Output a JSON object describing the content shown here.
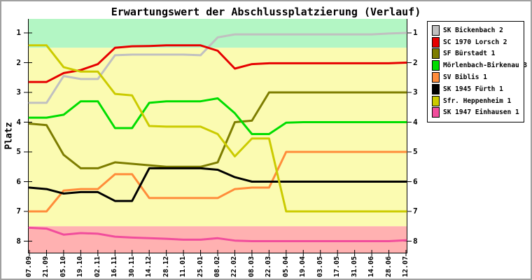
{
  "frame": {
    "border_color": "#a0a0a0",
    "background": "#ffffff"
  },
  "chart_data": {
    "type": "line",
    "title": "Erwartungswert der Abschlussplatzierung (Verlauf)",
    "ylabel": "Platz",
    "xlabel": "",
    "y_axis_inverted": true,
    "ylim": [
      0.53,
      8.41
    ],
    "y_ticks": [
      "1",
      "2",
      "3",
      "4",
      "5",
      "6",
      "7",
      "8"
    ],
    "grid": false,
    "legend_position": "outside-right",
    "x_labels": [
      "07.09",
      "21.09",
      "05.10",
      "19.10",
      "02.11",
      "16.11",
      "30.11",
      "14.12",
      "28.12",
      "11.01",
      "25.01",
      "08.02",
      "22.02",
      "08.03",
      "22.03",
      "05.04",
      "19.04",
      "03.05",
      "17.05",
      "31.05",
      "14.06",
      "28.06",
      "12.07"
    ],
    "bands": [
      {
        "label": "promotion-zone",
        "from": null,
        "to": 1.5,
        "color": "#b3f6c4"
      },
      {
        "label": "mid-table-zone",
        "from": 1.5,
        "to": 7.5,
        "color": "#fbfbb1"
      },
      {
        "label": "relegation-zone",
        "from": 7.5,
        "to": null,
        "color": "#ffb1b1"
      }
    ],
    "series": [
      {
        "id": "sk-bickenbach-2",
        "name": "SK Bickenbach 2",
        "color": "#c0c0c0",
        "values": [
          3.35,
          3.35,
          2.45,
          2.55,
          2.55,
          1.75,
          1.73,
          1.73,
          1.73,
          1.73,
          1.75,
          1.15,
          1.05,
          1.05,
          1.05,
          1.05,
          1.05,
          1.05,
          1.05,
          1.05,
          1.05,
          1.02,
          1.0
        ]
      },
      {
        "id": "sc-1970-lorsch-2",
        "name": "SC 1970 Lorsch 2",
        "color": "#e60000",
        "values": [
          2.65,
          2.65,
          2.35,
          2.25,
          2.05,
          1.5,
          1.45,
          1.44,
          1.42,
          1.42,
          1.42,
          1.6,
          2.2,
          2.05,
          2.02,
          2.02,
          2.02,
          2.02,
          2.02,
          2.02,
          2.02,
          2.02,
          2.0
        ]
      },
      {
        "id": "sf-buerstadt-1",
        "name": "SF Bürstadt 1",
        "color": "#7d7d00",
        "values": [
          4.05,
          4.1,
          5.1,
          5.55,
          5.55,
          5.35,
          5.4,
          5.45,
          5.5,
          5.5,
          5.5,
          5.35,
          4.0,
          3.95,
          3.0,
          3.0,
          3.0,
          3.0,
          3.0,
          3.0,
          3.0,
          3.0,
          3.0
        ]
      },
      {
        "id": "moerlenbach-birkenau-3",
        "name": "Mörlenbach-Birkenau 3",
        "color": "#00dd00",
        "values": [
          3.85,
          3.85,
          3.75,
          3.3,
          3.3,
          4.2,
          4.2,
          3.35,
          3.3,
          3.3,
          3.3,
          3.2,
          3.7,
          4.4,
          4.4,
          4.02,
          4.0,
          4.0,
          4.0,
          4.0,
          4.0,
          4.0,
          4.0
        ]
      },
      {
        "id": "sv-biblis-1",
        "name": "SV Biblis 1",
        "color": "#ff8c3a",
        "values": [
          7.0,
          7.0,
          6.3,
          6.25,
          6.25,
          5.75,
          5.75,
          6.55,
          6.55,
          6.55,
          6.55,
          6.55,
          6.25,
          6.2,
          6.2,
          5.0,
          5.0,
          5.0,
          5.0,
          5.0,
          5.0,
          5.0,
          5.0
        ]
      },
      {
        "id": "sk-1945-fuerth-1",
        "name": "SK 1945 Fürth 1",
        "color": "#000000",
        "values": [
          6.2,
          6.25,
          6.4,
          6.35,
          6.35,
          6.65,
          6.65,
          5.55,
          5.55,
          5.55,
          5.55,
          5.6,
          5.85,
          6.0,
          6.0,
          6.0,
          6.0,
          6.0,
          6.0,
          6.0,
          6.0,
          6.0,
          6.0
        ]
      },
      {
        "id": "sfr-heppenheim-1",
        "name": "Sfr. Heppenheim 1",
        "color": "#cbcb00",
        "values": [
          1.42,
          1.42,
          2.15,
          2.3,
          2.3,
          3.05,
          3.1,
          4.13,
          4.15,
          4.15,
          4.15,
          4.4,
          5.15,
          4.55,
          4.55,
          7.0,
          7.0,
          7.0,
          7.0,
          7.0,
          7.0,
          7.0,
          7.0
        ]
      },
      {
        "id": "sk-1947-einhausen-1",
        "name": "SK 1947 Einhausen 1",
        "color": "#f14d9c",
        "values": [
          7.55,
          7.58,
          7.78,
          7.73,
          7.75,
          7.85,
          7.88,
          7.9,
          7.92,
          7.95,
          7.95,
          7.9,
          7.98,
          8.0,
          8.0,
          8.0,
          8.0,
          8.0,
          8.0,
          8.0,
          8.0,
          8.0,
          7.97
        ]
      }
    ]
  }
}
